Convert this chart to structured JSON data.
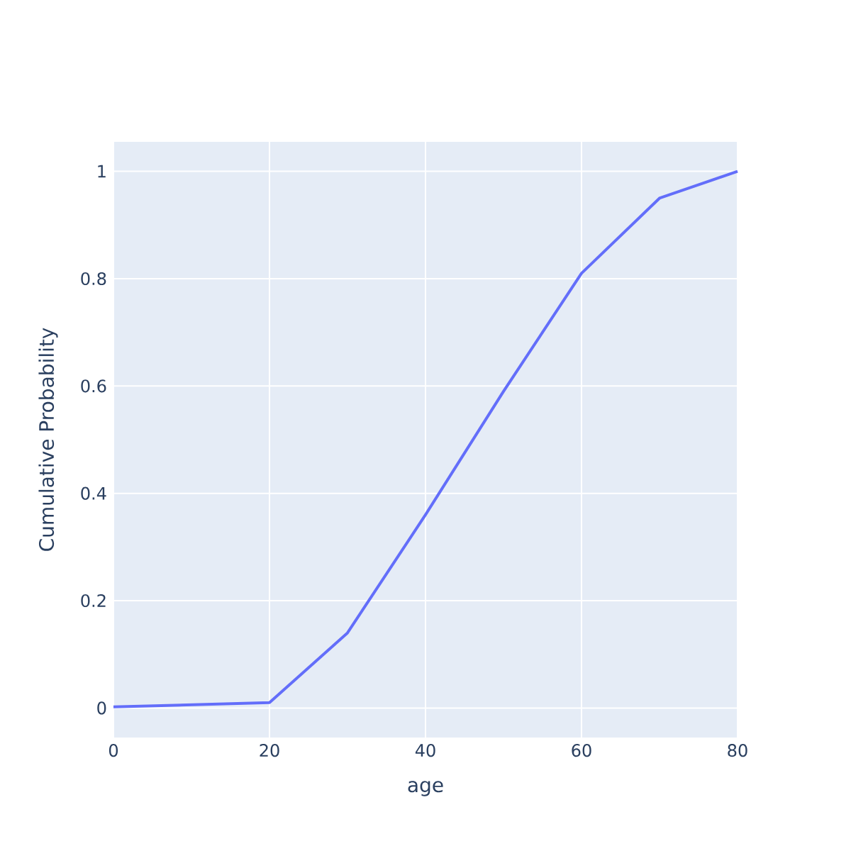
{
  "chart_data": {
    "type": "line",
    "xlabel": "age",
    "ylabel": "Cumulative Probability",
    "x": [
      0,
      20,
      30,
      40,
      50,
      60,
      70,
      80
    ],
    "values": [
      0.002,
      0.01,
      0.14,
      0.36,
      0.59,
      0.81,
      0.95,
      1.0
    ],
    "color": "#636efa",
    "line_style": "solid",
    "xlim": [
      0,
      80
    ],
    "ylim": [
      -0.055,
      1.055
    ],
    "xticks": [
      0,
      20,
      40,
      60,
      80
    ],
    "yticks": [
      0,
      0.2,
      0.4,
      0.6,
      0.8,
      1
    ],
    "grid": true
  }
}
